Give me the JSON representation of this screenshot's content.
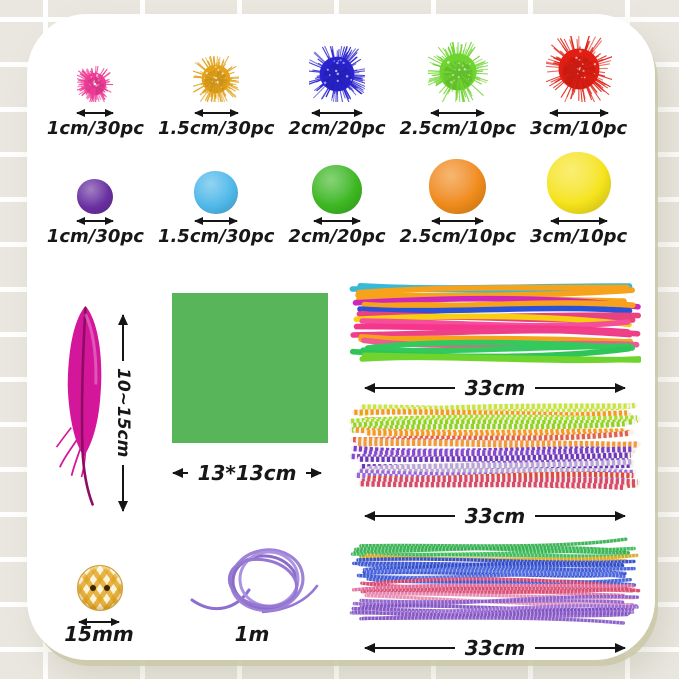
{
  "card": {
    "glitter_row": [
      {
        "label": "1cm/30pc",
        "color": "#ee3d96",
        "size": 36
      },
      {
        "label": "1.5cm/30pc",
        "color": "#e2a21b",
        "size": 46
      },
      {
        "label": "2cm/20pc",
        "color": "#2a23cf",
        "size": 56
      },
      {
        "label": "2.5cm/10pc",
        "color": "#6fd431",
        "size": 60
      },
      {
        "label": "3cm/10pc",
        "color": "#e01f14",
        "size": 66
      }
    ],
    "plain_row": [
      {
        "label": "1cm/30pc",
        "color": "#6a2fa0",
        "size": 36
      },
      {
        "label": "1.5cm/30pc",
        "color": "#4fb9e9",
        "size": 44
      },
      {
        "label": "2cm/20pc",
        "color": "#3eb822",
        "size": 50
      },
      {
        "label": "2.5cm/10pc",
        "color": "#f08c1b",
        "size": 57
      },
      {
        "label": "3cm/10pc",
        "color": "#f6e41c",
        "size": 64
      }
    ],
    "feather": {
      "label": "10~15cm",
      "color": "#d4169b",
      "shaft_color": "#8e0d62"
    },
    "paper": {
      "label": "13*13cm",
      "color": "#58b55a"
    },
    "bundles": [
      {
        "label": "33cm",
        "style": "plain",
        "count": 24,
        "seed": 11,
        "colors": [
          "#37b9d8",
          "#f7a21b",
          "#f7a21b",
          "#cf28b8",
          "#f7a21b",
          "#2a52d8",
          "#e8437f",
          "#f7cf11",
          "#f54f9b",
          "#f5368c",
          "#ef3f88",
          "#f7a21b",
          "#ef5a92",
          "#33c95e",
          "#2fc457",
          "#6fd42e"
        ]
      },
      {
        "label": "33cm",
        "style": "striped",
        "count": 28,
        "seed": 22,
        "colors": [
          "#c6e63a",
          "#f7991d",
          "#a6e026",
          "#8fd41e",
          "#f7991d",
          "#e2604e",
          "#f29a3a",
          "#7a3fc9",
          "#8549d4",
          "#6a38b8",
          "#b9a6d9",
          "#9a66d9",
          "#e04a3a",
          "#d94a6a"
        ]
      },
      {
        "label": "33cm",
        "style": "tinsel",
        "count": 34,
        "seed": 33,
        "colors": [
          "#2fae4a",
          "#35b855",
          "#d8a81e",
          "#2e49c9",
          "#3b58d6",
          "#2e49c9",
          "#4a66e0",
          "#3b58d6",
          "#d8436a",
          "#e06a9a",
          "#d84a70",
          "#e787b0",
          "#8a5ac9",
          "#7b4cc0",
          "#9a6ad4",
          "#8455c4"
        ]
      }
    ],
    "button": {
      "label": "15mm",
      "base_color": "#e2a31c"
    },
    "cord": {
      "label": "1m",
      "color": "#9d82d8"
    }
  }
}
